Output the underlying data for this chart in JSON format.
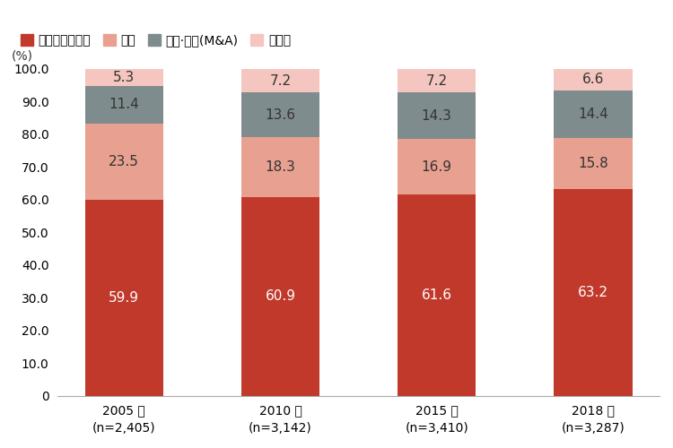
{
  "years": [
    "2005 年\n(n=2,405)",
    "2010 年\n(n=3,142)",
    "2015 年\n(n=3,410)",
    "2018 年\n(n=3,287)"
  ],
  "series": {
    "単独で新規設立": [
      59.9,
      60.9,
      61.6,
      63.2
    ],
    "合弁": [
      23.5,
      18.3,
      16.9,
      15.8
    ],
    "合併·買収(M&A)": [
      11.4,
      13.6,
      14.3,
      14.4
    ],
    "その他": [
      5.3,
      7.2,
      7.2,
      6.6
    ]
  },
  "colors": {
    "単独で新規設立": "#c0392b",
    "合弁": "#e8a090",
    "合併·買収(M&A)": "#7f8c8d",
    "その他": "#f5c6c0"
  },
  "legend_labels": [
    "単独で新規設立",
    "合弁",
    "合併·買収(M&A)",
    "その他"
  ],
  "ylabel": "(%)",
  "ylim": [
    0,
    100
  ],
  "yticks": [
    0,
    10.0,
    20.0,
    30.0,
    40.0,
    50.0,
    60.0,
    70.0,
    80.0,
    90.0,
    100.0
  ],
  "bar_width": 0.5,
  "figsize": [
    7.5,
    5.0
  ],
  "dpi": 100,
  "background_color": "#ffffff",
  "label_color_bottom": "#ffffff",
  "label_color_top": "#333333",
  "label_fontsize": 11,
  "tick_fontsize": 10,
  "legend_fontsize": 10
}
